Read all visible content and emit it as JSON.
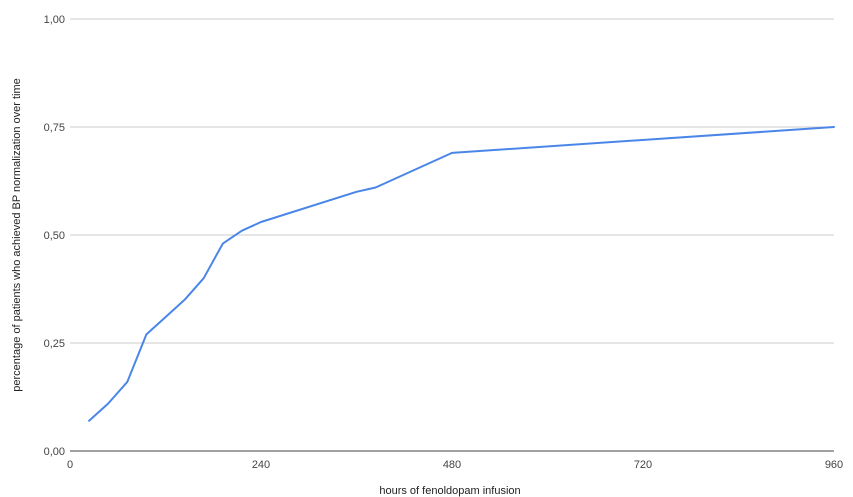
{
  "chart_data": {
    "type": "line",
    "title": "",
    "xlabel": "hours of fenoldopam infusion",
    "ylabel": "percentage of patients who achieved BP normalization over time",
    "xlim": [
      0,
      960
    ],
    "ylim": [
      0,
      1
    ],
    "x_ticks": [
      "0",
      "240",
      "480",
      "720",
      "960"
    ],
    "y_ticks": [
      "0,00",
      "0,25",
      "0,50",
      "0,75",
      "1,00"
    ],
    "grid": true,
    "legend": "none",
    "line_color": "#4a86e8",
    "series": [
      {
        "x": [
          24,
          48,
          72,
          96,
          120,
          144,
          168,
          192,
          216,
          240,
          360,
          384,
          480,
          960
        ],
        "values": [
          0.07,
          0.11,
          0.16,
          0.27,
          0.31,
          0.35,
          0.4,
          0.48,
          0.51,
          0.53,
          0.6,
          0.61,
          0.69,
          0.75
        ]
      }
    ]
  }
}
